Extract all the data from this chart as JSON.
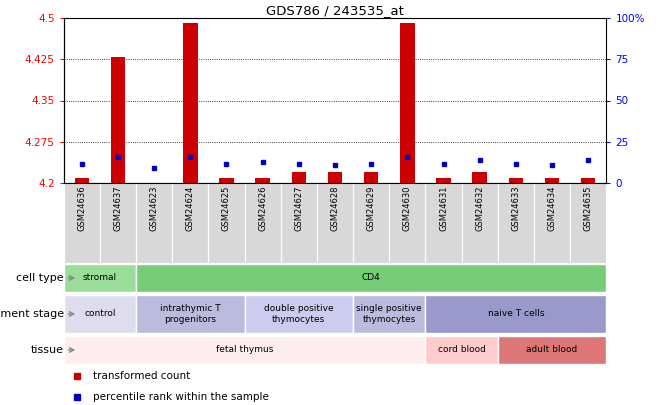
{
  "title": "GDS786 / 243535_at",
  "samples": [
    "GSM24636",
    "GSM24637",
    "GSM24623",
    "GSM24624",
    "GSM24625",
    "GSM24626",
    "GSM24627",
    "GSM24628",
    "GSM24629",
    "GSM24630",
    "GSM24631",
    "GSM24632",
    "GSM24633",
    "GSM24634",
    "GSM24635"
  ],
  "red_values": [
    4.21,
    4.43,
    4.2,
    4.49,
    4.21,
    4.21,
    4.22,
    4.22,
    4.22,
    4.49,
    4.21,
    4.22,
    4.21,
    4.21,
    4.21
  ],
  "blue_values": [
    4.235,
    4.248,
    4.228,
    4.248,
    4.235,
    4.238,
    4.235,
    4.232,
    4.235,
    4.248,
    4.235,
    4.242,
    4.235,
    4.232,
    4.242
  ],
  "ymin": 4.2,
  "ymax": 4.5,
  "yticks": [
    4.2,
    4.275,
    4.35,
    4.425,
    4.5
  ],
  "ytick_labels": [
    "4.2",
    "4.275",
    "4.35",
    "4.425",
    "4.5"
  ],
  "right_yticks": [
    0,
    25,
    50,
    75,
    100
  ],
  "right_ytick_labels": [
    "0",
    "25",
    "50",
    "75",
    "100%"
  ],
  "grid_values": [
    4.275,
    4.35,
    4.425
  ],
  "bar_color": "#cc0000",
  "dot_color": "#0000cc",
  "cell_type_groups": [
    {
      "label": "stromal",
      "start": 0,
      "end": 2,
      "color": "#99dd99"
    },
    {
      "label": "CD4",
      "start": 2,
      "end": 15,
      "color": "#77cc77"
    }
  ],
  "dev_stage_groups": [
    {
      "label": "control",
      "start": 0,
      "end": 2,
      "color": "#ddddee"
    },
    {
      "label": "intrathymic T\nprogenitors",
      "start": 2,
      "end": 5,
      "color": "#bbbbdd"
    },
    {
      "label": "double positive\nthymocytes",
      "start": 5,
      "end": 8,
      "color": "#ccccee"
    },
    {
      "label": "single positive\nthymocytes",
      "start": 8,
      "end": 10,
      "color": "#bbbbdd"
    },
    {
      "label": "naive T cells",
      "start": 10,
      "end": 15,
      "color": "#9999cc"
    }
  ],
  "tissue_groups": [
    {
      "label": "fetal thymus",
      "start": 0,
      "end": 10,
      "color": "#ffeeee"
    },
    {
      "label": "cord blood",
      "start": 10,
      "end": 12,
      "color": "#ffcccc"
    },
    {
      "label": "adult blood",
      "start": 12,
      "end": 15,
      "color": "#dd7777"
    }
  ],
  "legend_items": [
    {
      "label": "transformed count",
      "color": "#cc0000"
    },
    {
      "label": "percentile rank within the sample",
      "color": "#0000cc"
    }
  ],
  "tick_fontsize": 7.5,
  "annot_fontsize": 6.5,
  "sample_fontsize": 6,
  "row_label_fontsize": 8
}
